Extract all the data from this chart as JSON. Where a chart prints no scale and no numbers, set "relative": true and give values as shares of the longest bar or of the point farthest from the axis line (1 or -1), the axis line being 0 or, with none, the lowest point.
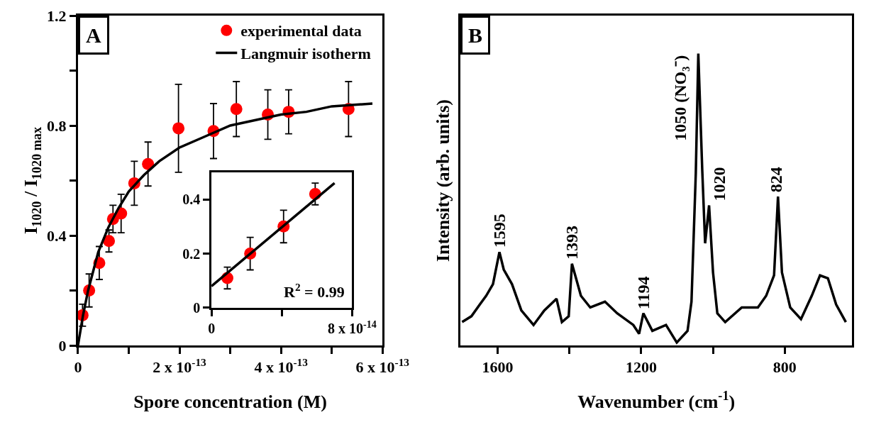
{
  "chart_data": [
    {
      "type": "scatter",
      "xlabel": "Spore concentration (M)",
      "ylabel": "I$_{1020}$ / I$_{1020 max}$",
      "legend": "top right",
      "marker": "circle",
      "annotations": [
        "A"
      ],
      "xlim": [
        0,
        6e-13
      ],
      "xticks": [
        0,
        {
          "value": 1e-13,
          "label": null
        },
        {
          "value": 2e-13,
          "label": "2 x 10$^{-13}$"
        },
        {
          "value": 3e-13,
          "label": null
        },
        {
          "value": 4e-13,
          "label": "4 x 10$^{-13}$"
        },
        {
          "value": 5e-13,
          "label": null
        },
        {
          "value": 6e-13,
          "label": "6 x 10$^{-13}$"
        }
      ],
      "ylim": [
        0,
        1.2
      ],
      "yticks": [
        0,
        {
          "value": 0.2,
          "label": null
        },
        0.4,
        {
          "value": 0.6,
          "label": null
        },
        0.8,
        {
          "value": 1.0,
          "label": null
        },
        1.2
      ],
      "series": [
        {
          "name": "experimental data",
          "type": "scatter",
          "color": "#ff0000",
          "x": [
            9e-15,
            2.2e-14,
            4.2e-14,
            6.1e-14,
            6.9e-14,
            8.5e-14,
            1.11e-13,
            1.38e-13,
            1.98e-13,
            2.67e-13,
            3.12e-13,
            3.74e-13,
            4.15e-13,
            5.33e-13
          ],
          "values": [
            0.11,
            0.2,
            0.3,
            0.38,
            0.46,
            0.48,
            0.59,
            0.66,
            0.79,
            0.78,
            0.86,
            0.84,
            0.85,
            0.86
          ],
          "errors": [
            0.04,
            0.06,
            0.06,
            0.04,
            0.05,
            0.07,
            0.08,
            0.08,
            0.16,
            0.1,
            0.1,
            0.09,
            0.08,
            0.1
          ]
        },
        {
          "name": "Langmuir isotherm",
          "type": "line",
          "marker": "none",
          "color": "#000000",
          "x": [
            0,
            1e-14,
            2e-14,
            4e-14,
            6e-14,
            8e-14,
            1e-13,
            1.3e-13,
            1.6e-13,
            2e-13,
            2.5e-13,
            3e-13,
            3.5e-13,
            4e-13,
            4.5e-13,
            5e-13,
            5.8e-13
          ],
          "values": [
            0,
            0.11,
            0.2,
            0.34,
            0.43,
            0.5,
            0.56,
            0.62,
            0.67,
            0.72,
            0.76,
            0.8,
            0.82,
            0.84,
            0.85,
            0.87,
            0.88
          ]
        }
      ]
    },
    {
      "type": "scatter",
      "marker": "circle",
      "annotations": [
        "R$^{2}$ = 0.99"
      ],
      "xlim": [
        0,
        8e-14
      ],
      "xticks": [
        0,
        {
          "value": 4e-14,
          "label": null
        },
        {
          "value": 8e-14,
          "label": "8 x 10$^{-14}$"
        }
      ],
      "ylim": [
        0,
        0.5
      ],
      "yticks": [
        0,
        0.2,
        0.4
      ],
      "series": [
        {
          "type": "scatter",
          "color": "#ff0000",
          "x": [
            9e-15,
            2.2e-14,
            4.1e-14,
            5.9e-14
          ],
          "values": [
            0.11,
            0.2,
            0.3,
            0.42
          ],
          "errors": [
            0.04,
            0.06,
            0.06,
            0.04
          ]
        },
        {
          "type": "line",
          "marker": "none",
          "color": "#000000",
          "x": [
            0,
            7e-14
          ],
          "values": [
            0.08,
            0.46
          ]
        }
      ]
    },
    {
      "type": "line",
      "relative": true,
      "tick_labels": "x",
      "marker": "none",
      "line_style": "solid",
      "color": "#000000",
      "xlabel": "Wavenumber (cm$^{-1}$)",
      "ylabel": "Intensity (arb. units)",
      "annotations": [
        "B",
        {
          "text": "1595",
          "x": 1595,
          "y": 0.32
        },
        {
          "text": "1393",
          "x": 1393,
          "y": 0.28
        },
        {
          "text": "1194",
          "x": 1194,
          "y": 0.11
        },
        {
          "text": "1050 (NO₃⁻)",
          "x": 1050,
          "y": 1.0
        },
        {
          "text": "1020",
          "x": 1020,
          "y": 0.48
        },
        {
          "text": "824",
          "x": 824,
          "y": 0.51
        }
      ],
      "xlim": [
        1703,
        613
      ],
      "xticks": [
        1600,
        {
          "value": 1400,
          "label": null
        },
        1200,
        {
          "value": 1000,
          "label": null
        },
        800
      ],
      "x": [
        1699,
        1673,
        1650,
        1632,
        1613,
        1595,
        1583,
        1560,
        1534,
        1500,
        1470,
        1436,
        1421,
        1402,
        1393,
        1368,
        1342,
        1301,
        1267,
        1222,
        1206,
        1194,
        1169,
        1131,
        1101,
        1071,
        1060,
        1048,
        1041,
        1030,
        1022,
        1011,
        1000,
        988,
        966,
        920,
        875,
        852,
        830,
        819,
        808,
        785,
        755,
        725,
        702,
        680,
        657,
        630
      ],
      "values": [
        0.08,
        0.1,
        0.14,
        0.17,
        0.21,
        0.32,
        0.26,
        0.21,
        0.12,
        0.07,
        0.12,
        0.16,
        0.08,
        0.1,
        0.28,
        0.17,
        0.13,
        0.15,
        0.11,
        0.07,
        0.04,
        0.11,
        0.05,
        0.07,
        0.01,
        0.05,
        0.15,
        0.59,
        1.0,
        0.6,
        0.35,
        0.48,
        0.25,
        0.11,
        0.08,
        0.13,
        0.13,
        0.17,
        0.24,
        0.51,
        0.25,
        0.13,
        0.09,
        0.17,
        0.24,
        0.23,
        0.14,
        0.08
      ]
    }
  ]
}
